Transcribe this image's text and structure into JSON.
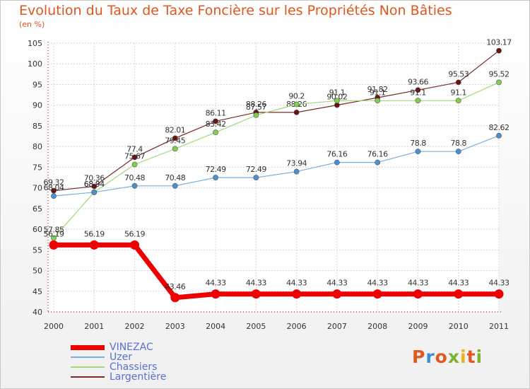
{
  "title": "Evolution du Taux de Taxe Foncière sur les Propriétés Non Bâties",
  "subtitle": "(en %)",
  "logo": {
    "text": "Proxiti",
    "colors": [
      "#e05a1f",
      "#3b8ed6",
      "#e05a1f",
      "#7ab32e",
      "#e8b21e",
      "#e05a1f",
      "#7ab32e"
    ]
  },
  "chart_data": {
    "type": "line",
    "title": "Evolution du Taux de Taxe Foncière sur les Propriétés Non Bâties",
    "ylabel": "(en %)",
    "xlabel": "",
    "x": [
      "2000",
      "2001",
      "2002",
      "2003",
      "2004",
      "2005",
      "2006",
      "2007",
      "2008",
      "2009",
      "2010",
      "2011"
    ],
    "ylim": [
      40,
      105
    ],
    "yticks": [
      40,
      45,
      50,
      55,
      60,
      65,
      70,
      75,
      80,
      85,
      90,
      95,
      100,
      105
    ],
    "grid": true,
    "series": [
      {
        "name": "Largentière",
        "color": "#7a2a2a",
        "dot": "#6b1212",
        "width": 1.2,
        "r": 3.6,
        "values": [
          69.32,
          70.36,
          77.4,
          82.01,
          86.11,
          88.26,
          88.26,
          90.02,
          91.82,
          93.66,
          95.53,
          103.17
        ],
        "labels": [
          "69.32",
          "70.36",
          "77.4",
          "82.01",
          "86.11",
          "88.26",
          "88.26",
          "90.02",
          "91.82",
          "93.66",
          "95.53",
          "103.17"
        ]
      },
      {
        "name": "Chassiers",
        "color": "#9fd97a",
        "dot": "#7cd04b",
        "width": 1.2,
        "r": 3.6,
        "values": [
          57.85,
          68.94,
          75.67,
          79.45,
          83.42,
          87.57,
          90.2,
          91.1,
          91.1,
          91.1,
          91.1,
          95.52
        ],
        "labels": [
          "57.85",
          "68.94",
          "75.67",
          "79.45",
          "83.42",
          "87.57",
          "90.2",
          "91.1",
          "91.1",
          "91.1",
          "91.1",
          "95.52"
        ]
      },
      {
        "name": "Uzer",
        "color": "#7aaedc",
        "dot": "#4a90d2",
        "width": 1.2,
        "r": 3.6,
        "values": [
          68.04,
          68.94,
          70.48,
          70.48,
          72.49,
          72.49,
          73.94,
          76.16,
          76.16,
          78.8,
          78.8,
          82.62
        ],
        "labels": [
          "68.04",
          "68.94",
          "70.48",
          "70.48",
          "72.49",
          "72.49",
          "73.94",
          "76.16",
          "76.16",
          "78.8",
          "78.8",
          "82.62"
        ]
      },
      {
        "name": "VINEZAC",
        "color": "#ee0000",
        "dot": "#ee0000",
        "width": 7,
        "r": 6.5,
        "values": [
          56.19,
          56.19,
          56.19,
          43.46,
          44.33,
          44.33,
          44.33,
          44.33,
          44.33,
          44.33,
          44.33,
          44.33
        ],
        "labels": [
          "56.19",
          "56.19",
          "56.19",
          "43.46",
          "44.33",
          "44.33",
          "44.33",
          "44.33",
          "44.33",
          "44.33",
          "44.33",
          "44.33"
        ]
      }
    ],
    "legend": {
      "placement": "bottom-left",
      "order": [
        "VINEZAC",
        "Uzer",
        "Chassiers",
        "Largentière"
      ]
    }
  }
}
